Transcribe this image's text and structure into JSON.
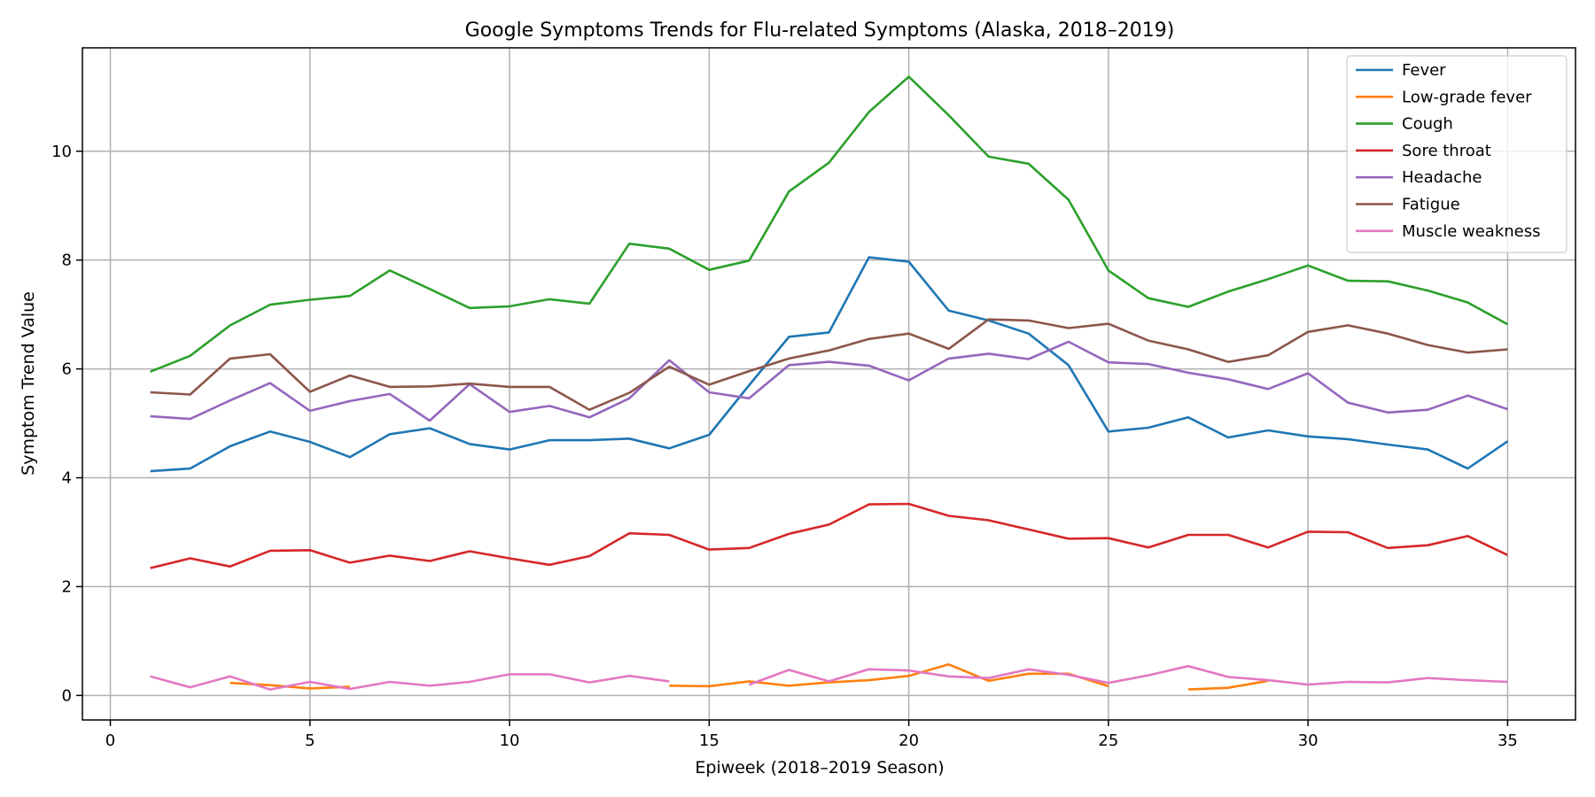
{
  "chart_data": {
    "type": "line",
    "title": "Google Symptoms Trends for Flu-related Symptoms (Alaska, 2018–2019)",
    "xlabel": "Epiweek (2018–2019 Season)",
    "ylabel": "Symptom Trend Value",
    "xlim": [
      -0.7,
      36.7
    ],
    "ylim": [
      -0.45,
      11.9
    ],
    "xticks": [
      0,
      5,
      10,
      15,
      20,
      25,
      30,
      35
    ],
    "yticks": [
      0,
      2,
      4,
      6,
      8,
      10
    ],
    "grid": true,
    "legend_position": "top-right",
    "x": [
      1,
      2,
      3,
      4,
      5,
      6,
      7,
      8,
      9,
      10,
      11,
      12,
      13,
      14,
      15,
      16,
      17,
      18,
      19,
      20,
      21,
      22,
      23,
      24,
      25,
      26,
      27,
      28,
      29,
      30,
      31,
      32,
      33,
      34,
      35
    ],
    "series": [
      {
        "name": "Fever",
        "color": "#1f77b4",
        "values": [
          4.12,
          4.17,
          4.58,
          4.85,
          4.66,
          4.38,
          4.8,
          4.91,
          4.62,
          4.52,
          4.69,
          4.69,
          4.72,
          4.54,
          4.79,
          5.7,
          6.59,
          6.67,
          8.05,
          7.97,
          7.07,
          6.89,
          6.65,
          6.07,
          4.85,
          4.92,
          5.11,
          4.74,
          4.87,
          4.76,
          4.71,
          4.61,
          4.52,
          4.17,
          4.67
        ]
      },
      {
        "name": "Low-grade fever",
        "color": "#ff7f0e",
        "values": [
          null,
          null,
          0.23,
          0.19,
          0.13,
          0.16,
          null,
          null,
          null,
          null,
          null,
          null,
          null,
          0.18,
          0.17,
          0.26,
          0.18,
          0.24,
          0.28,
          0.36,
          0.57,
          0.27,
          0.4,
          0.4,
          0.17,
          null,
          0.11,
          0.14,
          0.27,
          null,
          null,
          null,
          null,
          null,
          null
        ]
      },
      {
        "name": "Cough",
        "color": "#2ca02c",
        "values": [
          5.95,
          6.24,
          6.8,
          7.18,
          7.27,
          7.34,
          7.81,
          7.47,
          7.12,
          7.15,
          7.28,
          7.2,
          8.3,
          8.21,
          7.82,
          7.99,
          9.26,
          9.79,
          10.72,
          11.37,
          10.66,
          9.9,
          9.77,
          9.11,
          7.81,
          7.3,
          7.14,
          7.42,
          7.65,
          7.9,
          7.62,
          7.61,
          7.44,
          7.22,
          6.82
        ]
      },
      {
        "name": "Sore throat",
        "color": "#d62728",
        "values": [
          2.34,
          2.52,
          2.37,
          2.66,
          2.67,
          2.44,
          2.57,
          2.47,
          2.65,
          2.52,
          2.4,
          2.56,
          2.98,
          2.95,
          2.68,
          2.71,
          2.97,
          3.14,
          3.51,
          3.52,
          3.3,
          3.22,
          3.05,
          2.88,
          2.89,
          2.72,
          2.95,
          2.95,
          2.72,
          3.01,
          3.0,
          2.71,
          2.76,
          2.93,
          2.58
        ]
      },
      {
        "name": "Headache",
        "color": "#9467bd",
        "values": [
          5.13,
          5.08,
          5.42,
          5.74,
          5.23,
          5.41,
          5.54,
          5.05,
          5.72,
          5.21,
          5.32,
          5.11,
          5.46,
          6.16,
          5.57,
          5.46,
          6.07,
          6.13,
          6.06,
          5.79,
          6.19,
          6.28,
          6.18,
          6.5,
          6.12,
          6.09,
          5.93,
          5.81,
          5.63,
          5.92,
          5.38,
          5.2,
          5.25,
          5.51,
          5.26
        ]
      },
      {
        "name": "Fatigue",
        "color": "#8c564b",
        "values": [
          5.57,
          5.53,
          6.19,
          6.27,
          5.58,
          5.88,
          5.67,
          5.68,
          5.73,
          5.67,
          5.67,
          5.25,
          5.56,
          6.04,
          5.71,
          5.96,
          6.19,
          6.34,
          6.55,
          6.65,
          6.37,
          6.91,
          6.89,
          6.75,
          6.83,
          6.52,
          6.36,
          6.13,
          6.25,
          6.68,
          6.8,
          6.65,
          6.44,
          6.3,
          6.36
        ]
      },
      {
        "name": "Muscle weakness",
        "color": "#e377c2",
        "values": [
          0.35,
          0.15,
          0.35,
          0.11,
          0.25,
          0.12,
          0.25,
          0.18,
          0.25,
          0.39,
          0.39,
          0.24,
          0.36,
          0.26,
          null,
          0.2,
          0.47,
          0.26,
          0.48,
          0.46,
          0.35,
          0.32,
          0.48,
          0.38,
          0.23,
          0.37,
          0.54,
          0.34,
          0.28,
          0.2,
          0.25,
          0.24,
          0.32,
          0.28,
          0.25
        ]
      }
    ]
  }
}
